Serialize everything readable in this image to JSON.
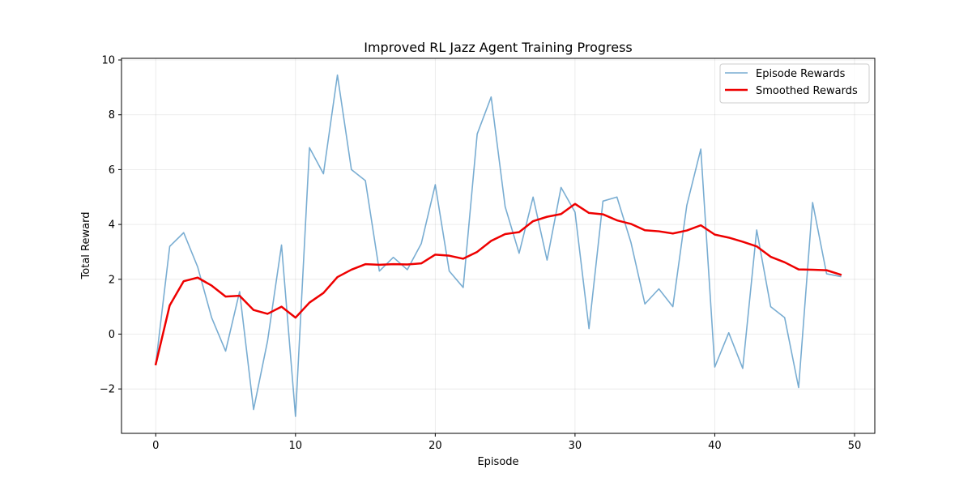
{
  "chart_data": {
    "type": "line",
    "title": "Improved RL Jazz Agent Training Progress",
    "xlabel": "Episode",
    "ylabel": "Total Reward",
    "xlim": [
      -2.45,
      51.45
    ],
    "ylim": [
      -3.62,
      10.06
    ],
    "xticks": [
      0,
      10,
      20,
      30,
      40,
      50
    ],
    "yticks": [
      -2,
      0,
      2,
      4,
      6,
      8,
      10
    ],
    "xtick_labels": [
      "0",
      "10",
      "20",
      "30",
      "40",
      "50"
    ],
    "ytick_labels": [
      "−2",
      "0",
      "2",
      "4",
      "6",
      "8",
      "10"
    ],
    "grid": true,
    "legend_position": "top-right",
    "x": [
      0,
      1,
      2,
      3,
      4,
      5,
      6,
      7,
      8,
      9,
      10,
      11,
      12,
      13,
      14,
      15,
      16,
      17,
      18,
      19,
      20,
      21,
      22,
      23,
      24,
      25,
      26,
      27,
      28,
      29,
      30,
      31,
      32,
      33,
      34,
      35,
      36,
      37,
      38,
      39,
      40,
      41,
      42,
      43,
      44,
      45,
      46,
      47,
      48,
      49
    ],
    "series": [
      {
        "name": "Episode Rewards",
        "color": "#1f77b4",
        "values": [
          -1.1,
          3.2,
          3.7,
          2.45,
          0.6,
          -0.62,
          1.55,
          -2.75,
          -0.25,
          3.25,
          -3.0,
          6.8,
          5.85,
          9.45,
          6.0,
          5.6,
          2.3,
          2.8,
          2.35,
          3.3,
          5.45,
          2.3,
          1.7,
          7.3,
          8.65,
          4.65,
          2.95,
          5.0,
          2.7,
          5.35,
          4.45,
          0.2,
          4.85,
          5.0,
          3.35,
          1.1,
          1.65,
          1.0,
          4.7,
          6.75,
          -1.2,
          0.05,
          -1.25,
          3.8,
          1.0,
          0.6,
          -1.95,
          4.8,
          2.2,
          2.1
        ]
      },
      {
        "name": "Smoothed Rewards",
        "color": "#ee0000",
        "values": [
          -1.1,
          1.05,
          1.93,
          2.06,
          1.77,
          1.37,
          1.4,
          0.88,
          0.74,
          1.0,
          0.6,
          1.15,
          1.5,
          2.08,
          2.35,
          2.55,
          2.53,
          2.55,
          2.54,
          2.58,
          2.9,
          2.86,
          2.75,
          3.0,
          3.4,
          3.65,
          3.72,
          4.12,
          4.28,
          4.38,
          4.75,
          4.42,
          4.37,
          4.15,
          4.02,
          3.79,
          3.75,
          3.67,
          3.78,
          3.97,
          3.63,
          3.52,
          3.37,
          3.2,
          2.82,
          2.62,
          2.36,
          2.35,
          2.33,
          2.17
        ]
      }
    ]
  }
}
